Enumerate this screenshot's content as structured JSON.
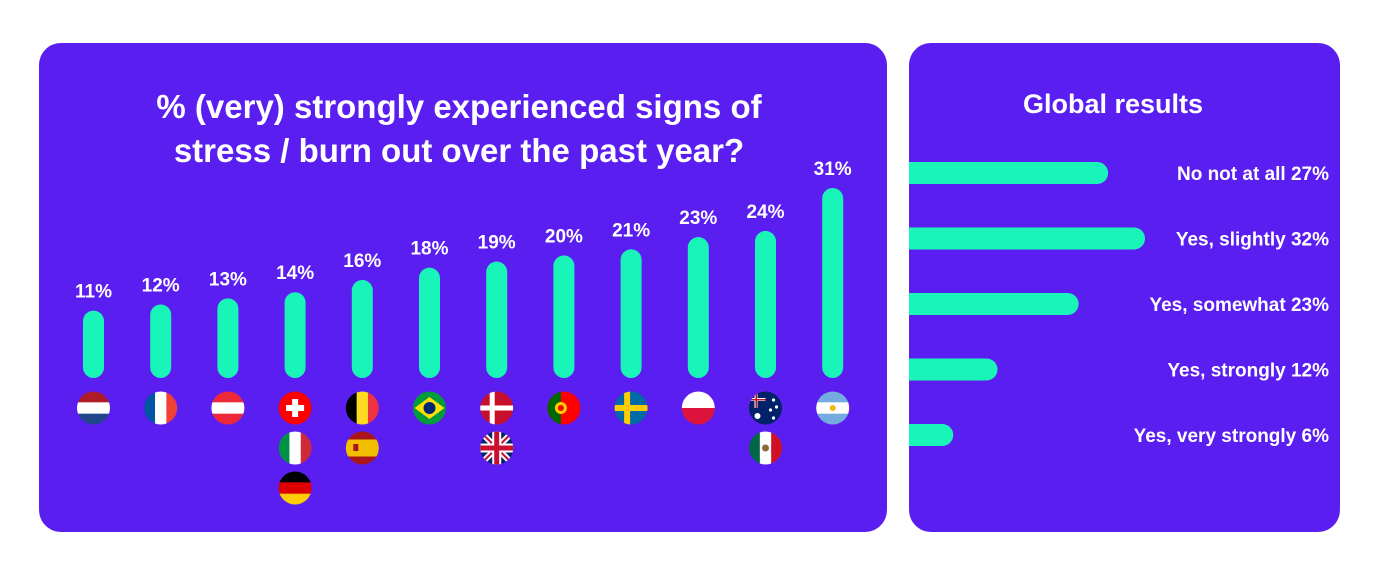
{
  "colors": {
    "background": "#ffffff",
    "card": "#5a1ff0",
    "bar": "#19f5b9",
    "text": "#ffffff"
  },
  "chart_data": [
    {
      "type": "bar",
      "title": "% (very) strongly experienced signs of stress / burn out over the past year?",
      "title_lines": [
        "% (very) strongly experienced signs of",
        "stress / burn out over the past year?"
      ],
      "categories": [
        "Netherlands",
        "France",
        "Austria",
        "Switzerland / Italy / Germany",
        "Belgium / Spain",
        "Brazil",
        "Denmark / United Kingdom",
        "Portugal",
        "Sweden",
        "Poland",
        "Australia / Mexico",
        "Argentina"
      ],
      "values": [
        11,
        12,
        13,
        14,
        16,
        18,
        19,
        20,
        21,
        23,
        24,
        31
      ],
      "value_labels": [
        "11%",
        "12%",
        "13%",
        "14%",
        "16%",
        "18%",
        "19%",
        "20%",
        "21%",
        "23%",
        "24%",
        "31%"
      ],
      "flags": [
        [
          "netherlands-flag-icon"
        ],
        [
          "france-flag-icon"
        ],
        [
          "austria-flag-icon"
        ],
        [
          "switzerland-flag-icon",
          "italy-flag-icon",
          "germany-flag-icon"
        ],
        [
          "belgium-flag-icon",
          "spain-flag-icon"
        ],
        [
          "brazil-flag-icon"
        ],
        [
          "denmark-flag-icon",
          "uk-flag-icon"
        ],
        [
          "portugal-flag-icon"
        ],
        [
          "sweden-flag-icon"
        ],
        [
          "poland-flag-icon"
        ],
        [
          "australia-flag-icon",
          "mexico-flag-icon"
        ],
        [
          "argentina-flag-icon"
        ]
      ],
      "unit": "%",
      "ylim": [
        0,
        31
      ]
    },
    {
      "type": "bar",
      "orientation": "horizontal",
      "title": "Global results",
      "categories": [
        "No not at all",
        "Yes, slightly",
        "Yes, somewhat",
        "Yes, strongly",
        "Yes, very strongly"
      ],
      "values": [
        27,
        32,
        23,
        12,
        6
      ],
      "labels": [
        "No not at all 27%",
        "Yes, slightly 32%",
        "Yes, somewhat 23%",
        "Yes, strongly 12%",
        "Yes, very strongly 6%"
      ],
      "unit": "%",
      "xlim": [
        0,
        32
      ]
    }
  ]
}
